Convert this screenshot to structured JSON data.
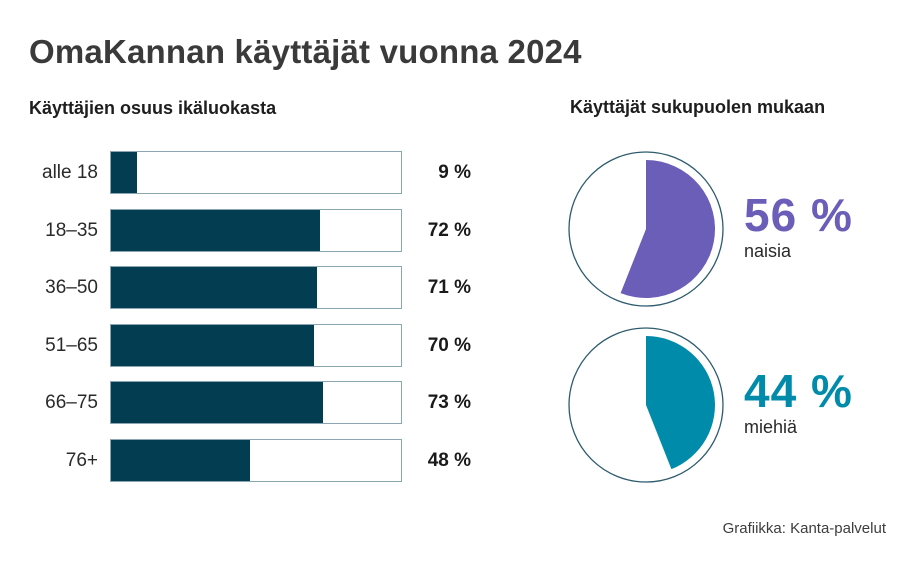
{
  "title": "OmaKannan käyttäjät vuonna 2024",
  "left_panel": {
    "subtitle": "Käyttäjien osuus ikäluokasta"
  },
  "right_panel": {
    "subtitle": "Käyttäjät sukupuolen mukaan"
  },
  "credit": "Grafiikka: Kanta-palvelut",
  "colors": {
    "bar": "#033d52",
    "bar_border": "#8aa6b3",
    "women": "#6b5eb8",
    "men": "#008bab",
    "pie_ring": "#2d5b6e"
  },
  "chart_data": [
    {
      "type": "bar",
      "orientation": "horizontal",
      "title": "Käyttäjien osuus ikäluokasta",
      "categories": [
        "alle 18",
        "18–35",
        "36–50",
        "51–65",
        "66–75",
        "76+"
      ],
      "values": [
        9,
        72,
        71,
        70,
        73,
        48
      ],
      "value_labels": [
        "9 %",
        "72 %",
        "71 %",
        "70 %",
        "73 %",
        "48 %"
      ],
      "xlim": [
        0,
        100
      ],
      "unit": "%",
      "grid": false
    },
    {
      "type": "pie",
      "title": "Käyttäjät sukupuolen mukaan",
      "slices": [
        {
          "label": "naisia",
          "value": 56,
          "value_label": "56 %",
          "color": "#6b5eb8"
        },
        {
          "label": "miehiä",
          "value": 44,
          "value_label": "44 %",
          "color": "#008bab"
        }
      ],
      "note": "Each share drawn as its own pie against a white circle"
    }
  ],
  "rows": [
    {
      "label": "alle 18",
      "value": 9,
      "value_label": "9 %"
    },
    {
      "label": "18–35",
      "value": 72,
      "value_label": "72 %"
    },
    {
      "label": "36–50",
      "value": 71,
      "value_label": "71 %"
    },
    {
      "label": "51–65",
      "value": 70,
      "value_label": "70 %"
    },
    {
      "label": "66–75",
      "value": 73,
      "value_label": "73 %"
    },
    {
      "label": "76+",
      "value": 48,
      "value_label": "48 %"
    }
  ],
  "pies": [
    {
      "value": 56,
      "value_label": "56 %",
      "caption": "naisia",
      "color": "#6b5eb8"
    },
    {
      "value": 44,
      "value_label": "44 %",
      "caption": "miehiä",
      "color": "#008bab"
    }
  ]
}
